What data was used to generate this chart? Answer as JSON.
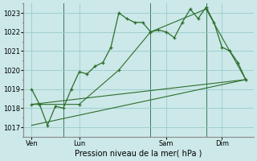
{
  "xlabel": "Pression niveau de la mer( hPa )",
  "bg_color": "#cce8e8",
  "grid_color": "#99cccc",
  "line_color": "#2d6e2d",
  "ylim": [
    1016.5,
    1023.5
  ],
  "xlim": [
    0,
    14.5
  ],
  "yticks": [
    1017,
    1018,
    1019,
    1020,
    1021,
    1022,
    1023
  ],
  "day_positions": [
    0.5,
    3.5,
    9.0,
    12.5
  ],
  "day_labels": [
    "Ven",
    "Lun",
    "Sam",
    "Dim"
  ],
  "vline_x": [
    2.5,
    8.0,
    11.5
  ],
  "line1_x": [
    0.5,
    1.0,
    1.5,
    2.0,
    2.5,
    3.0,
    3.5,
    4.0,
    4.5,
    5.0,
    5.5,
    6.0,
    6.5,
    7.0,
    7.5,
    8.0,
    8.5,
    9.0,
    9.5,
    10.0,
    10.5,
    11.0,
    11.5,
    12.0,
    12.5,
    13.0,
    13.5,
    14.0
  ],
  "line1_y": [
    1019.0,
    1018.2,
    1017.1,
    1018.1,
    1018.0,
    1019.0,
    1019.9,
    1019.8,
    1020.2,
    1020.4,
    1021.2,
    1023.0,
    1022.7,
    1022.5,
    1022.5,
    1022.0,
    1022.1,
    1022.0,
    1021.7,
    1022.5,
    1023.2,
    1022.7,
    1023.3,
    1022.5,
    1021.2,
    1021.0,
    1020.4,
    1019.5
  ],
  "line2_x": [
    0.5,
    3.5,
    6.0,
    8.0,
    11.5,
    14.0
  ],
  "line2_y": [
    1018.2,
    1018.2,
    1020.0,
    1022.0,
    1023.2,
    1019.5
  ],
  "line3_x": [
    0.5,
    14.0
  ],
  "line3_y": [
    1018.2,
    1019.5
  ],
  "line4_x": [
    0.5,
    14.0
  ],
  "line4_y": [
    1017.1,
    1019.5
  ]
}
